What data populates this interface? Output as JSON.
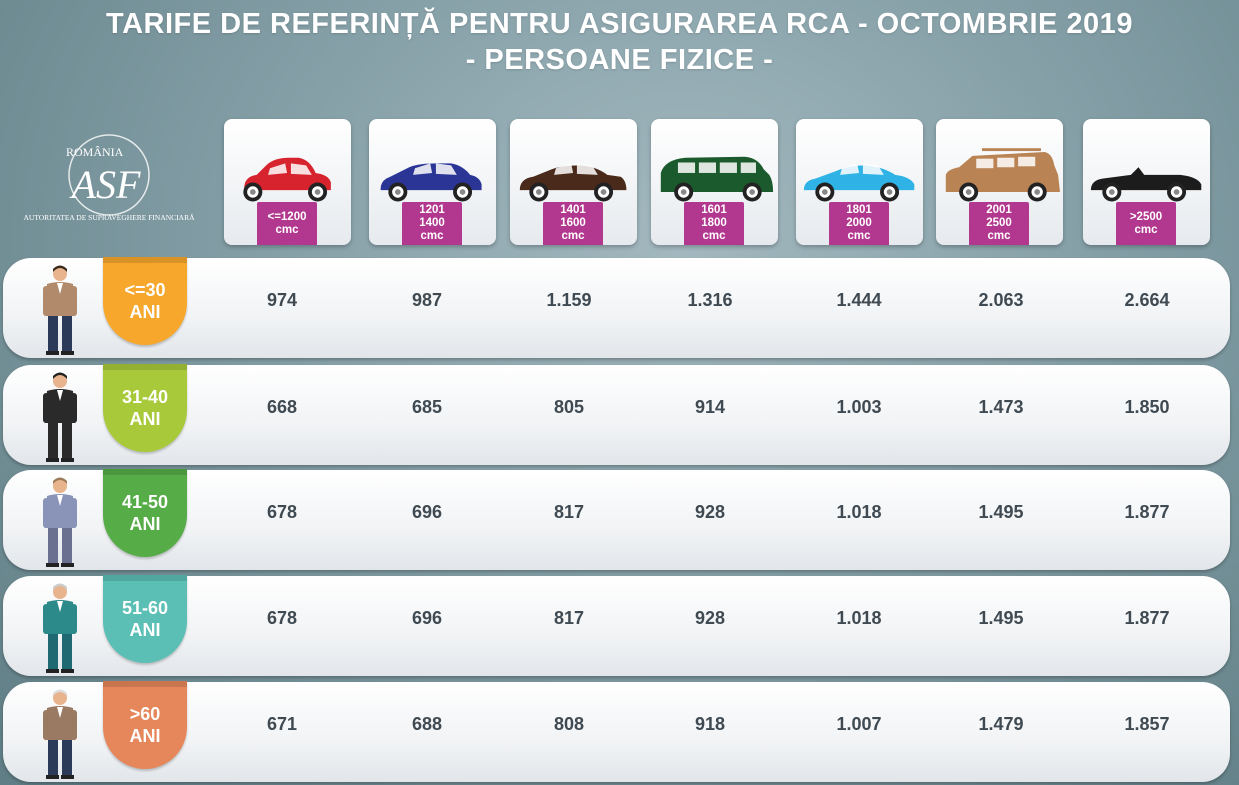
{
  "title_line1": "TARIFE DE REFERINȚĂ PENTRU ASIGURAREA RCA - OCTOMBRIE 2019",
  "title_line2": "- PERSOANE FIZICE -",
  "logo": {
    "country": "ROMÂNIA",
    "monogram": "ASF",
    "org": "AUTORITATEA DE SUPRAVEGHERE FINANCIARĂ"
  },
  "categories": [
    {
      "line1": "<=1200",
      "line2": "cmc",
      "color": "#d6232d",
      "icon": "hatchback-car-icon"
    },
    {
      "line1": "1201",
      "line2": "1400",
      "line3": "cmc",
      "color": "#2a3596",
      "icon": "compact-car-icon"
    },
    {
      "line1": "1401",
      "line2": "1600",
      "line3": "cmc",
      "color": "#4a2a1a",
      "icon": "sedan-car-icon"
    },
    {
      "line1": "1601",
      "line2": "1800",
      "line3": "cmc",
      "color": "#1a5a2c",
      "icon": "minivan-icon"
    },
    {
      "line1": "1801",
      "line2": "2000",
      "line3": "cmc",
      "color": "#2fb2e6",
      "icon": "coupe-car-icon"
    },
    {
      "line1": "2001",
      "line2": "2500",
      "line3": "cmc",
      "color": "#b98354",
      "icon": "suv-icon"
    },
    {
      "line1": ">2500",
      "line2": "cmc",
      "color": "#1c1c1c",
      "icon": "convertible-car-icon"
    }
  ],
  "rows": [
    {
      "age1": "<=30",
      "age2": "ANI",
      "color": "#f6a72c",
      "person": "young-man-icon",
      "values": [
        "974",
        "987",
        "1.159",
        "1.316",
        "1.444",
        "2.063",
        "2.664"
      ]
    },
    {
      "age1": "31-40",
      "age2": "ANI",
      "color": "#a8c93a",
      "person": "man-in-suit-icon",
      "values": [
        "668",
        "685",
        "805",
        "914",
        "1.003",
        "1.473",
        "1.850"
      ]
    },
    {
      "age1": "41-50",
      "age2": "ANI",
      "color": "#56ac46",
      "person": "bearded-man-icon",
      "values": [
        "678",
        "696",
        "817",
        "928",
        "1.018",
        "1.495",
        "1.877"
      ]
    },
    {
      "age1": "51-60",
      "age2": "ANI",
      "color": "#5cbfb6",
      "person": "man-in-vest-icon",
      "values": [
        "678",
        "696",
        "817",
        "928",
        "1.018",
        "1.495",
        "1.877"
      ]
    },
    {
      "age1": ">60",
      "age2": "ANI",
      "color": "#e5875a",
      "person": "elderly-man-icon",
      "values": [
        "671",
        "688",
        "808",
        "918",
        "1.007",
        "1.479",
        "1.857"
      ]
    }
  ]
}
